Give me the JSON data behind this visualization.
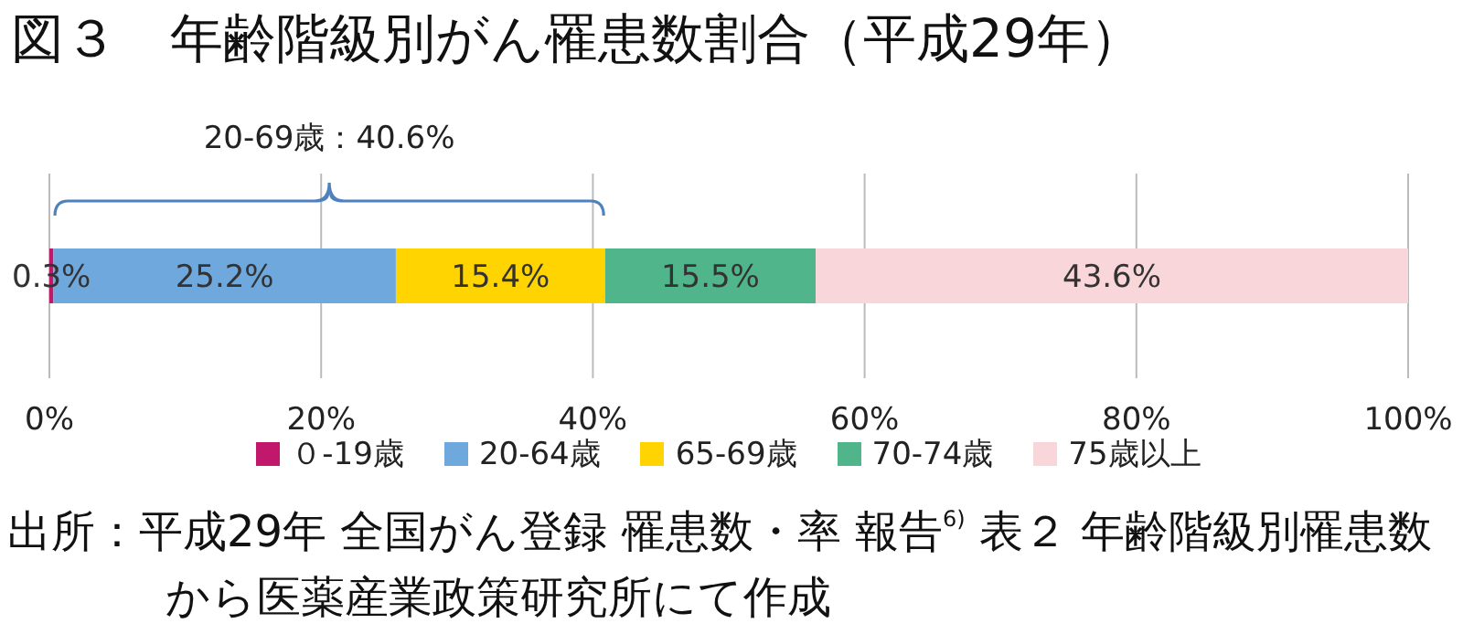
{
  "chart_data": {
    "type": "bar",
    "orientation": "horizontal",
    "stacked": true,
    "title": "図３　年齢階級別がん罹患数割合（平成29年）",
    "categories": [
      null
    ],
    "series": [
      {
        "name": "０-19歳",
        "color": "#c2186b",
        "values": [
          0.3
        ],
        "value_labels": [
          "0.3%"
        ]
      },
      {
        "name": "20-64歳",
        "color": "#6fa8dc",
        "values": [
          25.2
        ],
        "value_labels": [
          "25.2%"
        ]
      },
      {
        "name": "65-69歳",
        "color": "#ffd400",
        "values": [
          15.4
        ],
        "value_labels": [
          "15.4%"
        ]
      },
      {
        "name": "70-74歳",
        "color": "#50b58b",
        "values": [
          15.5
        ],
        "value_labels": [
          "15.5%"
        ]
      },
      {
        "name": "75歳以上",
        "color": "#f9d6da",
        "values": [
          43.6
        ],
        "value_labels": [
          "43.6%"
        ]
      }
    ],
    "xlim": [
      0,
      100
    ],
    "xticks": [
      {
        "value": 0,
        "label": "0%"
      },
      {
        "value": 20,
        "label": "20%"
      },
      {
        "value": 40,
        "label": "40%"
      },
      {
        "value": 60,
        "label": "60%"
      },
      {
        "value": 80,
        "label": "80%"
      },
      {
        "value": 100,
        "label": "100%"
      }
    ],
    "grid": "x",
    "legend": "bottom",
    "annotations": [
      "20-69歳：40.6%",
      "出所：平成29年 全国がん登録 罹患数・率 報告$^{6)}$ 表２ 年齢階級別罹患数から医薬産業政策研究所にて作成"
    ]
  }
}
